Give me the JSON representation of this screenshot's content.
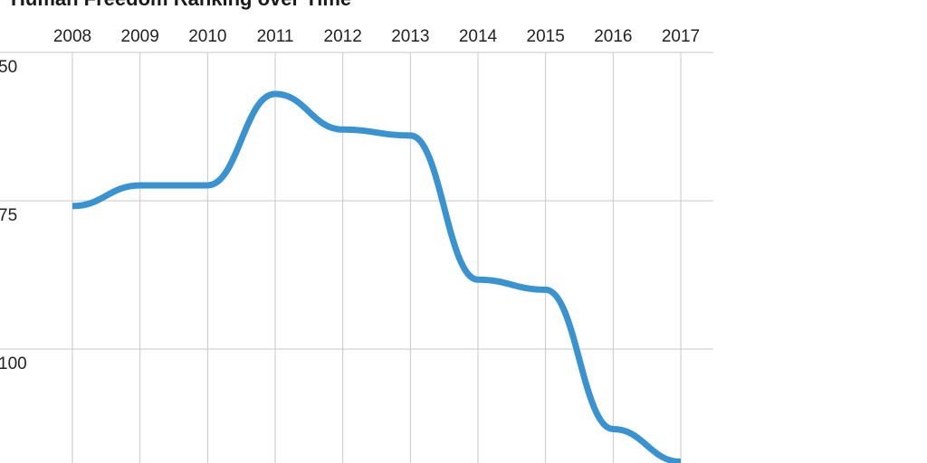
{
  "chart_data": {
    "type": "line",
    "title": "Human Freedom Ranking over Time",
    "xlabel": "",
    "ylabel": "",
    "x": [
      2008,
      2009,
      2010,
      2011,
      2012,
      2013,
      2014,
      2015,
      2016,
      2017
    ],
    "x_tick_labels": [
      "2008",
      "2009",
      "2010",
      "2011",
      "2012",
      "2013",
      "2014",
      "2015",
      "2016",
      "2017"
    ],
    "x_axis_position": "top",
    "y_tick_labels": [
      "50",
      "75",
      "100"
    ],
    "y_ticks": [
      50,
      75,
      100
    ],
    "y_reversed": true,
    "ylim": [
      50,
      119
    ],
    "grid": true,
    "series": [
      {
        "values": [
          75.9,
          72.4,
          72.4,
          57.0,
          63.0,
          64.0,
          88.3,
          90.0,
          113.5,
          119.0
        ],
        "color": "#3a93d1"
      }
    ]
  },
  "colors": {
    "line": "#3a93d1",
    "grid": "#c8c8c8",
    "text": "#222222",
    "background": "#ffffff"
  }
}
